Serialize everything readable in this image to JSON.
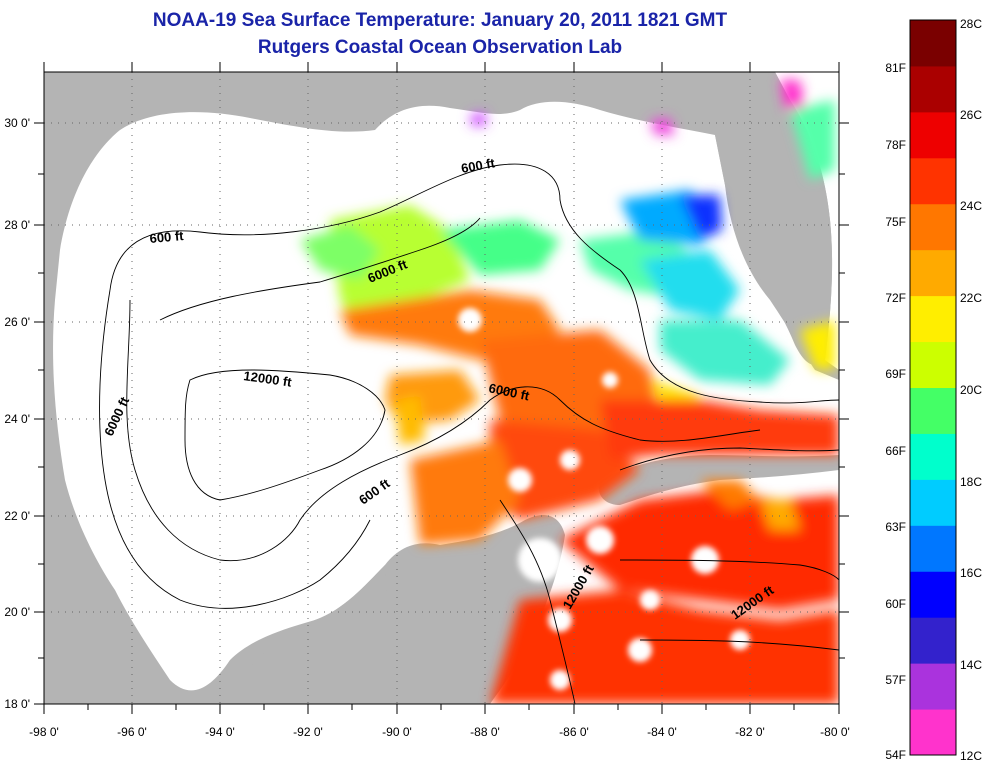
{
  "title_line1": "NOAA-19 Sea Surface Temperature:  January 20, 2011 1821 GMT",
  "title_line2": "Rutgers Coastal Ocean Observation Lab",
  "axes": {
    "x_ticks": [
      "-98 0'",
      "-96 0'",
      "-94 0'",
      "-92 0'",
      "-90 0'",
      "-88 0'",
      "-86 0'",
      "-84 0'",
      "-82 0'",
      "-80 0'"
    ],
    "y_ticks": [
      "30 0'",
      "28 0'",
      "26 0'",
      "24 0'",
      "22 0'",
      "20 0'",
      "18 0'"
    ],
    "lon_range": [
      -98,
      -80
    ],
    "lat_range": [
      18,
      31
    ]
  },
  "contour_labels": [
    {
      "text": "600 ft"
    },
    {
      "text": "600 ft"
    },
    {
      "text": "6000 ft"
    },
    {
      "text": "6000 ft"
    },
    {
      "text": "12000 ft"
    },
    {
      "text": "6000 ft"
    },
    {
      "text": "600 ft"
    },
    {
      "text": "12000 ft"
    },
    {
      "text": "12000 ft"
    }
  ],
  "colorbar": {
    "celsius_labels": [
      "28C",
      "26C",
      "24C",
      "22C",
      "20C",
      "18C",
      "16C",
      "14C",
      "12C"
    ],
    "fahrenheit_labels": [
      "81F",
      "78F",
      "75F",
      "72F",
      "69F",
      "66F",
      "63F",
      "60F",
      "57F",
      "54F"
    ],
    "range_c": [
      12,
      28
    ],
    "colors": [
      "#ff33cc",
      "#aa33dd",
      "#3322cc",
      "#0000ff",
      "#0077ff",
      "#00ccff",
      "#00ffcc",
      "#44ff66",
      "#ccff00",
      "#ffee00",
      "#ffaa00",
      "#ff7700",
      "#ff3300",
      "#ee0000",
      "#aa0000",
      "#7a0000"
    ]
  },
  "colors": {
    "land": "#b4b4b4",
    "ocean_nodata": "#ffffff",
    "title": "#1a24a8"
  }
}
